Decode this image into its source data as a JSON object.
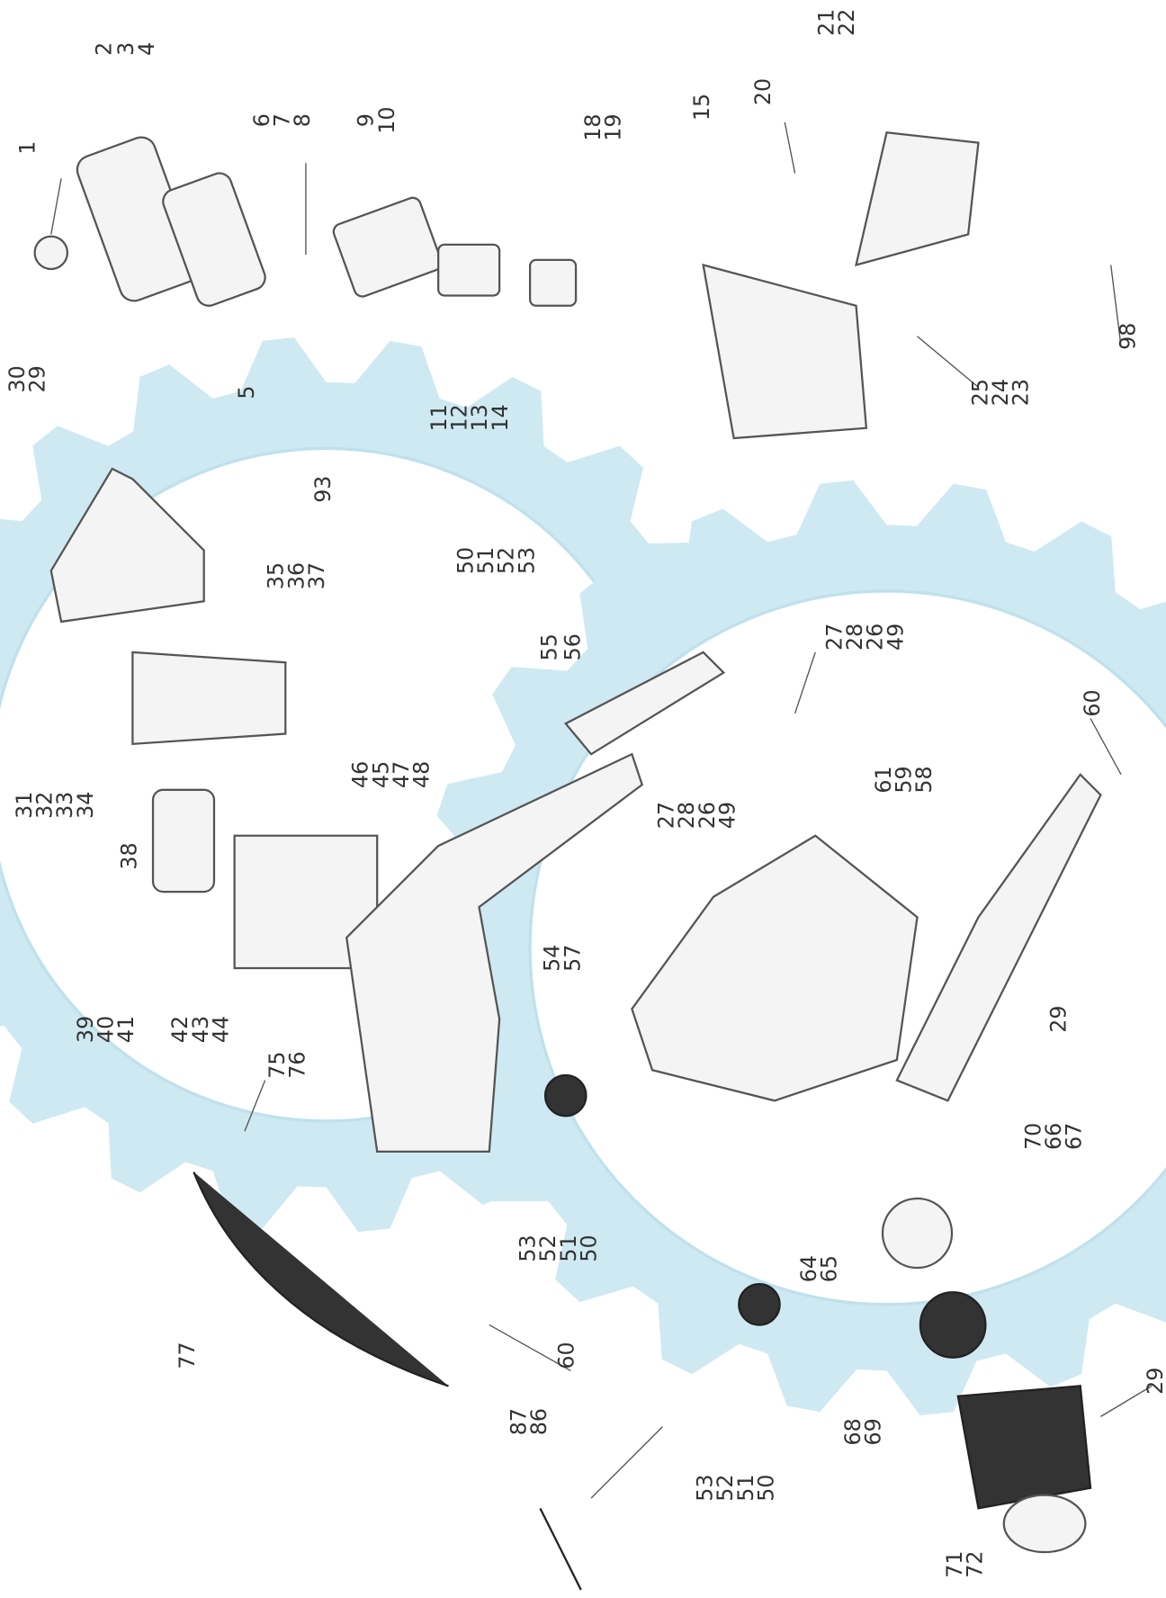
{
  "callouts": [
    "1",
    "2",
    "3",
    "4",
    "6",
    "7",
    "8",
    "9",
    "10",
    "5",
    "11",
    "12",
    "13",
    "14",
    "18",
    "19",
    "15",
    "20",
    "21",
    "22",
    "25",
    "24",
    "23",
    "98",
    "30",
    "29",
    "93",
    "35",
    "36",
    "37",
    "50",
    "51",
    "52",
    "53",
    "55",
    "56",
    "27",
    "28",
    "26",
    "49",
    "60",
    "31",
    "32",
    "33",
    "34",
    "38",
    "46",
    "45",
    "47",
    "48",
    "27",
    "28",
    "26",
    "49",
    "61",
    "59",
    "58",
    "39",
    "40",
    "41",
    "42",
    "43",
    "44",
    "54",
    "57",
    "29",
    "75",
    "76",
    "53",
    "52",
    "51",
    "50",
    "70",
    "66",
    "67",
    "64",
    "65",
    "77",
    "60",
    "29",
    "87",
    "86",
    "53",
    "52",
    "51",
    "50",
    "68",
    "69",
    "71",
    "72"
  ]
}
